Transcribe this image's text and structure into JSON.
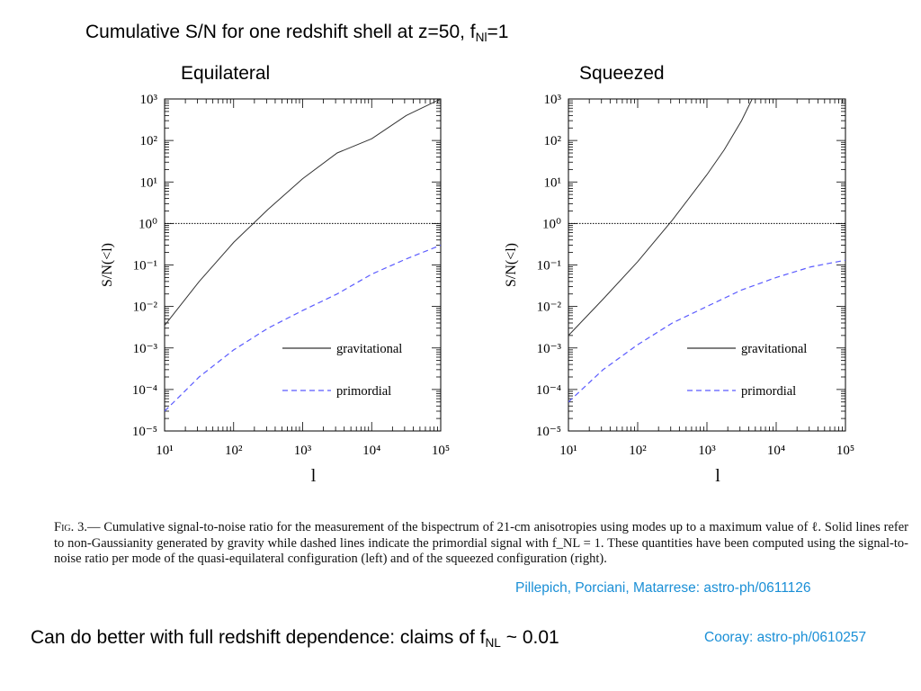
{
  "slide": {
    "title_main": "Cumulative S/N for one redshift shell at z=50, f",
    "title_sub": "Nl",
    "title_end": "=1",
    "bottom_main": "Can do better with full redshift dependence: claims of f",
    "bottom_sub": "NL",
    "bottom_end": " ~ 0.01",
    "credit_top": "Pillepich, Porciani, Matarrese: astro-ph/0611126",
    "credit_bottom": "Cooray: astro-ph/0610257"
  },
  "caption": {
    "prefix": "Fig. 3.",
    "text": "— Cumulative signal-to-noise ratio for the measurement of the bispectrum of 21-cm anisotropies using modes up to a maximum value of ℓ. Solid lines refer to non-Gaussianity generated by gravity while dashed lines indicate the primordial signal with f_NL = 1. These quantities have been computed using the signal-to-noise ratio per mode of the quasi-equilateral configuration (left) and of the squeezed configuration (right)."
  },
  "chart_data": [
    {
      "type": "line",
      "title": "Equilateral",
      "xlabel": "l",
      "ylabel": "S/N(<l)",
      "xscale": "log",
      "yscale": "log",
      "xlim": [
        10,
        100000
      ],
      "ylim": [
        1e-05,
        1000
      ],
      "x_tick_labels": [
        "10¹",
        "10²",
        "10³",
        "10⁴",
        "10⁵"
      ],
      "y_tick_labels": [
        "10⁻⁵",
        "10⁻⁴",
        "10⁻³",
        "10⁻²",
        "10⁻¹",
        "10⁰",
        "10¹",
        "10²",
        "10³"
      ],
      "legend_position": "lower-right",
      "series": [
        {
          "name": "gravitational",
          "style": "solid",
          "color": "#333333",
          "x": [
            10,
            31.6,
            100,
            316,
            1000,
            3160,
            10000,
            31600,
            100000
          ],
          "y": [
            0.0035,
            0.04,
            0.35,
            2.2,
            12,
            50,
            110,
            400,
            1000
          ]
        },
        {
          "name": "primordial",
          "style": "dashed",
          "color": "#5b5bff",
          "x": [
            10,
            31.6,
            100,
            316,
            1000,
            3160,
            10000,
            31600,
            100000
          ],
          "y": [
            3e-05,
            0.0002,
            0.0009,
            0.003,
            0.008,
            0.02,
            0.06,
            0.14,
            0.3
          ]
        },
        {
          "name": "",
          "style": "dotted",
          "color": "#000000",
          "x": [
            10,
            100000
          ],
          "y": [
            1,
            1
          ]
        }
      ]
    },
    {
      "type": "line",
      "title": "Squeezed",
      "xlabel": "l",
      "ylabel": "S/N(<l)",
      "xscale": "log",
      "yscale": "log",
      "xlim": [
        10,
        100000
      ],
      "ylim": [
        1e-05,
        1000
      ],
      "x_tick_labels": [
        "10¹",
        "10²",
        "10³",
        "10⁴",
        "10⁵"
      ],
      "y_tick_labels": [
        "10⁻⁵",
        "10⁻⁴",
        "10⁻³",
        "10⁻²",
        "10⁻¹",
        "10⁰",
        "10¹",
        "10²",
        "10³"
      ],
      "legend_position": "lower-right",
      "series": [
        {
          "name": "gravitational",
          "style": "solid",
          "color": "#333333",
          "x": [
            10,
            31.6,
            100,
            316,
            1000,
            1780,
            3160,
            4500
          ],
          "y": [
            0.002,
            0.015,
            0.12,
            1.2,
            15,
            60,
            300,
            1000
          ]
        },
        {
          "name": "primordial",
          "style": "dashed",
          "color": "#5b5bff",
          "x": [
            10,
            31.6,
            100,
            316,
            1000,
            3160,
            10000,
            31600,
            100000
          ],
          "y": [
            5e-05,
            0.0003,
            0.0012,
            0.004,
            0.01,
            0.025,
            0.05,
            0.09,
            0.13
          ]
        },
        {
          "name": "",
          "style": "dotted",
          "color": "#000000",
          "x": [
            10,
            100000
          ],
          "y": [
            1,
            1
          ]
        }
      ]
    }
  ]
}
